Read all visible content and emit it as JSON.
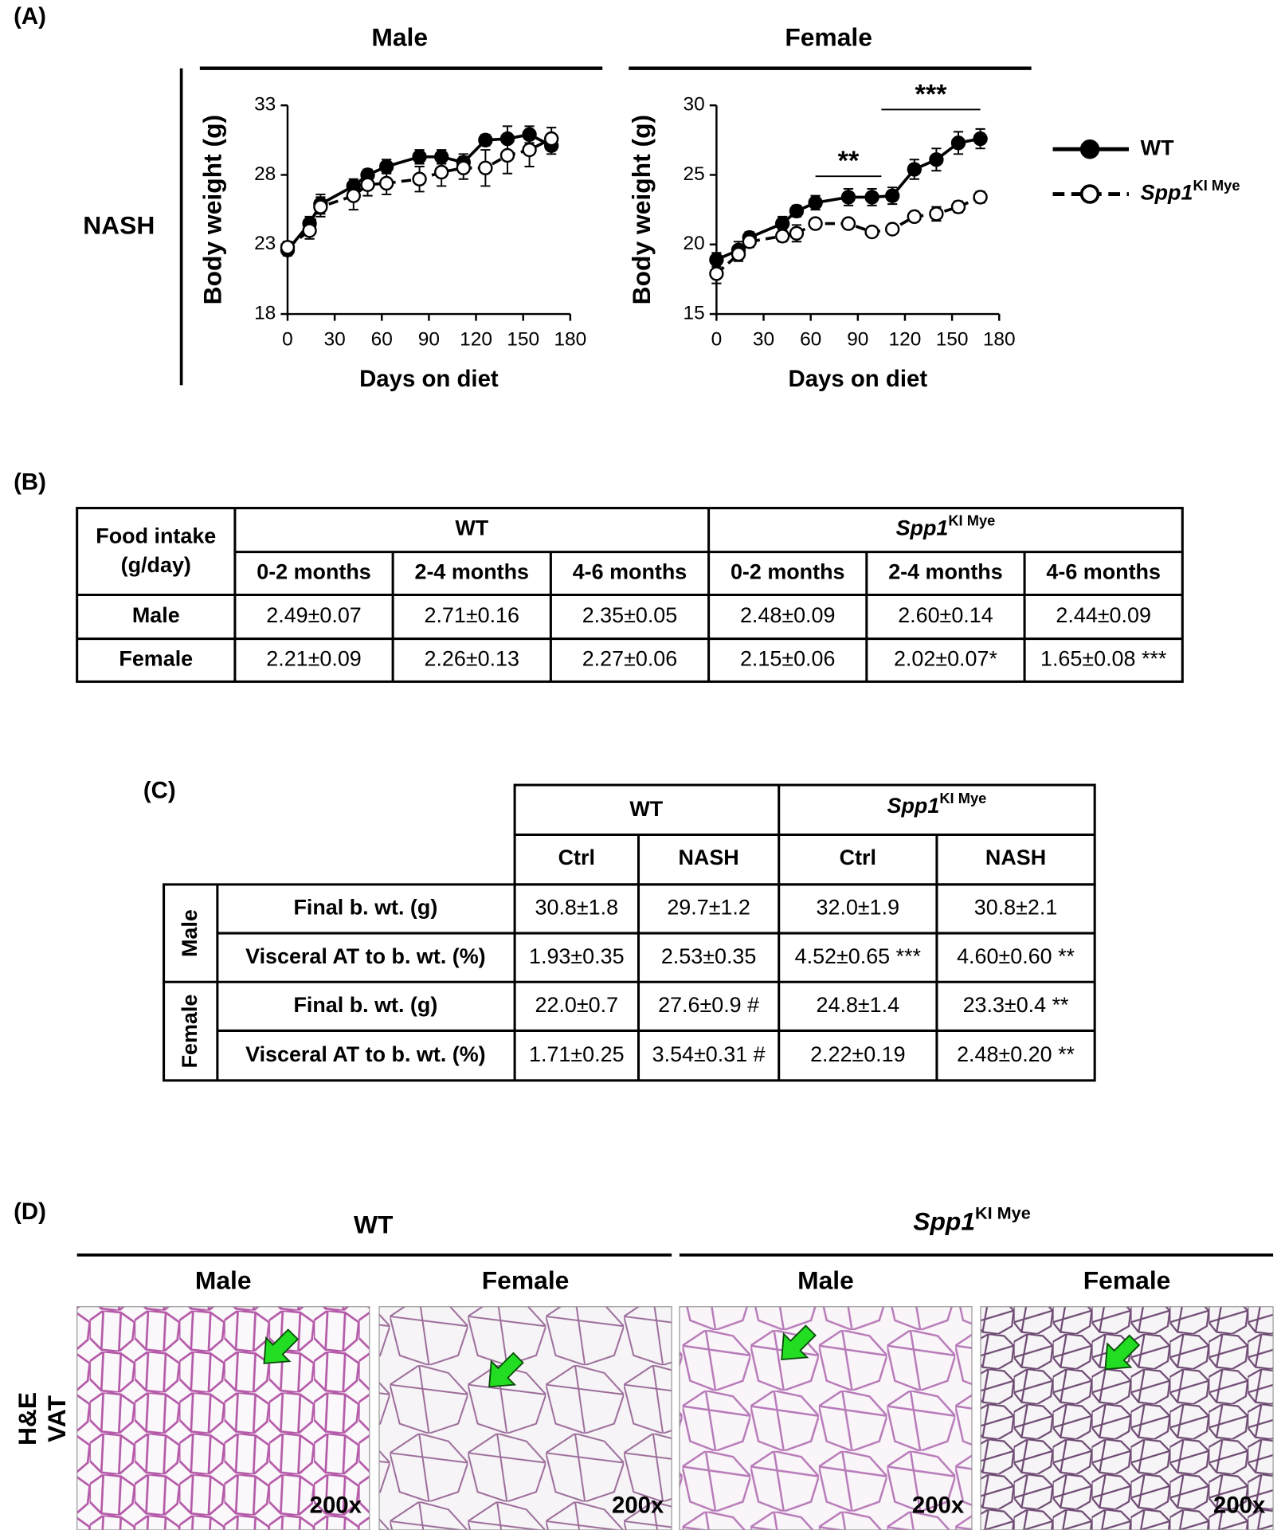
{
  "panel_labels": [
    "(A)",
    "(B)",
    "(C)",
    "(D)"
  ],
  "panel_a": {
    "row_label": "NASH"
  },
  "chart_data": [
    {
      "type": "line",
      "title": "Male",
      "xlabel": "Days on diet",
      "ylabel": "Body weight (g)",
      "xlim": [
        0,
        180
      ],
      "xticks": [
        0,
        30,
        60,
        90,
        120,
        150,
        180
      ],
      "ylim": [
        18,
        33
      ],
      "yticks": [
        18,
        23,
        28,
        33
      ],
      "x": [
        0,
        14,
        21,
        42,
        51,
        63,
        84,
        98,
        112,
        126,
        140,
        154,
        168
      ],
      "series": [
        {
          "name": "WT",
          "color": "#000000",
          "marker_fill": "#000000",
          "dashed": false,
          "values": [
            22.6,
            24.5,
            25.9,
            27.2,
            28.0,
            28.6,
            29.3,
            29.3,
            28.9,
            30.5,
            30.6,
            30.9,
            30.1
          ],
          "errors": [
            0.4,
            0.5,
            0.7,
            0.5,
            0.4,
            0.5,
            0.5,
            0.5,
            0.6,
            0.4,
            0.9,
            0.6,
            0.6
          ]
        },
        {
          "name": "Spp1",
          "name_superscript": "KI Mye",
          "color": "#000000",
          "marker_fill": "#ffffff",
          "dashed": true,
          "values": [
            22.8,
            24.0,
            25.7,
            26.5,
            27.3,
            27.4,
            27.7,
            28.2,
            28.5,
            28.5,
            29.4,
            29.8,
            30.6
          ],
          "errors": [
            0.4,
            0.6,
            0.7,
            1.0,
            0.8,
            0.8,
            0.9,
            1.0,
            0.8,
            1.3,
            1.3,
            1.2,
            0.8
          ]
        }
      ]
    },
    {
      "type": "line",
      "title": "Female",
      "xlabel": "Days on diet",
      "ylabel": "Body weight (g)",
      "xlim": [
        0,
        180
      ],
      "xticks": [
        0,
        30,
        60,
        90,
        120,
        150,
        180
      ],
      "ylim": [
        15,
        30
      ],
      "yticks": [
        15,
        20,
        25,
        30
      ],
      "x": [
        0,
        14,
        21,
        42,
        51,
        63,
        84,
        99,
        112,
        126,
        140,
        154,
        168
      ],
      "series": [
        {
          "name": "WT",
          "color": "#000000",
          "marker_fill": "#000000",
          "dashed": false,
          "values": [
            18.9,
            19.6,
            20.5,
            21.5,
            22.4,
            23.0,
            23.4,
            23.4,
            23.5,
            25.4,
            26.1,
            27.3,
            27.6
          ],
          "errors": [
            0.5,
            0.6,
            0.4,
            0.5,
            0.4,
            0.5,
            0.6,
            0.6,
            0.6,
            0.7,
            0.8,
            0.8,
            0.7
          ]
        },
        {
          "name": "Spp1",
          "name_superscript": "KI Mye",
          "color": "#000000",
          "marker_fill": "#ffffff",
          "dashed": true,
          "values": [
            17.9,
            19.3,
            20.2,
            20.6,
            20.8,
            21.5,
            21.5,
            20.9,
            21.1,
            22.0,
            22.2,
            22.7,
            23.4
          ],
          "errors": [
            0.7,
            0.5,
            0.4,
            0.4,
            0.6,
            0.3,
            0.3,
            0.3,
            0.3,
            0.3,
            0.5,
            0.4,
            0.4
          ]
        }
      ],
      "annotations": [
        {
          "text": "**",
          "x": [
            63,
            105
          ],
          "y": 24.9
        },
        {
          "text": "***",
          "x": [
            105,
            168
          ],
          "y": 29.7
        }
      ]
    }
  ],
  "table_b": {
    "corner": [
      "Food intake",
      "(g/day)"
    ],
    "groups": [
      {
        "label": "WT"
      },
      {
        "label": "Spp1",
        "superscript": "KI Mye"
      }
    ],
    "columns": [
      "0-2 months",
      "2-4 months",
      "4-6 months",
      "0-2 months",
      "2-4 months",
      "4-6 months"
    ],
    "rows": [
      {
        "label": "Male",
        "cells": [
          "2.49±0.07",
          "2.71±0.16",
          "2.35±0.05",
          "2.48±0.09",
          "2.60±0.14",
          "2.44±0.09"
        ]
      },
      {
        "label": "Female",
        "cells": [
          "2.21±0.09",
          "2.26±0.13",
          "2.27±0.06",
          "2.15±0.06",
          "2.02±0.07*",
          "1.65±0.08 ***"
        ]
      }
    ]
  },
  "table_c": {
    "groups": [
      {
        "label": "WT"
      },
      {
        "label": "Spp1",
        "superscript": "KI Mye"
      }
    ],
    "columns": [
      "Ctrl",
      "NASH",
      "Ctrl",
      "NASH"
    ],
    "sections": [
      {
        "label": "Male",
        "rows": [
          {
            "label": "Final b. wt. (g)",
            "cells": [
              "30.8±1.8",
              "29.7±1.2",
              "32.0±1.9",
              "30.8±2.1"
            ]
          },
          {
            "label": "Visceral AT to b. wt. (%)",
            "cells": [
              "1.93±0.35",
              "2.53±0.35",
              "4.52±0.65 ***",
              "4.60±0.60 **"
            ]
          }
        ]
      },
      {
        "label": "Female",
        "rows": [
          {
            "label": "Final b. wt. (g)",
            "cells": [
              "22.0±0.7",
              "27.6±0.9 #",
              "24.8±1.4",
              "23.3±0.4 **"
            ]
          },
          {
            "label": "Visceral AT to b. wt. (%)",
            "cells": [
              "1.71±0.25",
              "3.54±0.31 #",
              "2.22±0.19",
              "2.48±0.20 **"
            ]
          }
        ]
      }
    ]
  },
  "panel_d": {
    "groups": [
      {
        "label": "WT"
      },
      {
        "label": "Spp1",
        "superscript": "KI Mye"
      }
    ],
    "images": [
      {
        "label": "Male",
        "magnification": "200x"
      },
      {
        "label": "Female",
        "magnification": "200x"
      },
      {
        "label": "Male",
        "magnification": "200x"
      },
      {
        "label": "Female",
        "magnification": "200x"
      }
    ],
    "row_label": [
      "H&E",
      "VAT"
    ]
  }
}
